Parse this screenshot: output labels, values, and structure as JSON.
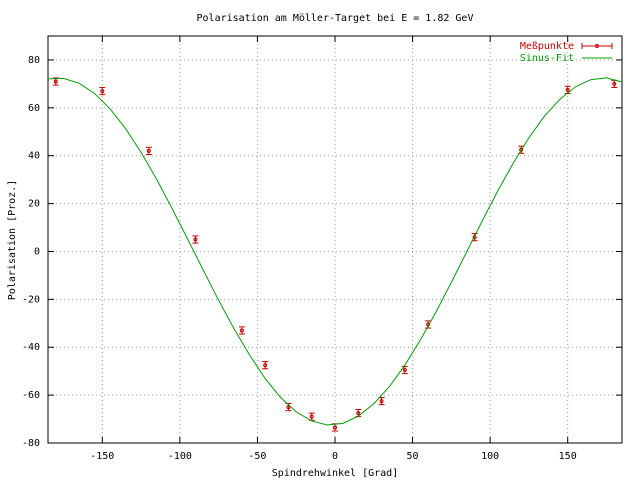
{
  "chart_data": {
    "type": "line",
    "title": "Polarisation am Möller-Target bei E = 1.82 GeV",
    "x_label": "Spindrehwinkel [Grad]",
    "y_label": "Polarisation [Proz.]",
    "xlim": [
      -185,
      185
    ],
    "ylim": [
      -80,
      90
    ],
    "xticks": [
      -150,
      -100,
      -50,
      0,
      50,
      100,
      150
    ],
    "yticks": [
      -80,
      -60,
      -40,
      -20,
      0,
      20,
      40,
      60,
      80
    ],
    "grid": true,
    "legend": "top-right",
    "series": [
      {
        "name": "Meßpunkte",
        "color": "#cc0000",
        "type": "errorbar",
        "x": [
          -180,
          -150,
          -120,
          -90,
          -60,
          -45,
          -30,
          -15,
          0,
          15,
          30,
          45,
          60,
          90,
          120,
          150,
          180
        ],
        "values": [
          71,
          67,
          42,
          5,
          -33,
          -47.5,
          -65,
          -69,
          -73.5,
          -67.5,
          -62.5,
          -49.5,
          -30.5,
          6,
          42.5,
          67.5,
          70
        ],
        "errors": [
          1.5,
          1.5,
          1.5,
          1.5,
          1.5,
          1.5,
          1.5,
          1.5,
          1.5,
          1.5,
          1.5,
          1.5,
          1.5,
          1.5,
          1.5,
          1.5,
          1.5
        ]
      },
      {
        "name": "Sinus-Fit",
        "color": "#00a000",
        "type": "line",
        "x": [
          -185,
          -175,
          -165,
          -155,
          -145,
          -135,
          -125,
          -115,
          -105,
          -95,
          -85,
          -75,
          -65,
          -55,
          -45,
          -35,
          -25,
          -15,
          -5,
          5,
          15,
          25,
          35,
          45,
          55,
          65,
          75,
          85,
          95,
          105,
          115,
          125,
          135,
          145,
          155,
          165,
          175,
          185
        ],
        "values": [
          72.1,
          72.3,
          70.3,
          66.0,
          59.6,
          51.3,
          41.4,
          30.2,
          17.9,
          5.2,
          -7.7,
          -20.4,
          -32.4,
          -43.3,
          -53.1,
          -61.0,
          -67.0,
          -70.8,
          -72.5,
          -71.8,
          -68.8,
          -63.6,
          -56.5,
          -47.5,
          -37.0,
          -25.4,
          -12.9,
          0,
          12.9,
          25.4,
          37.0,
          47.5,
          56.5,
          63.6,
          68.8,
          71.8,
          72.5,
          70.8
        ]
      }
    ]
  }
}
